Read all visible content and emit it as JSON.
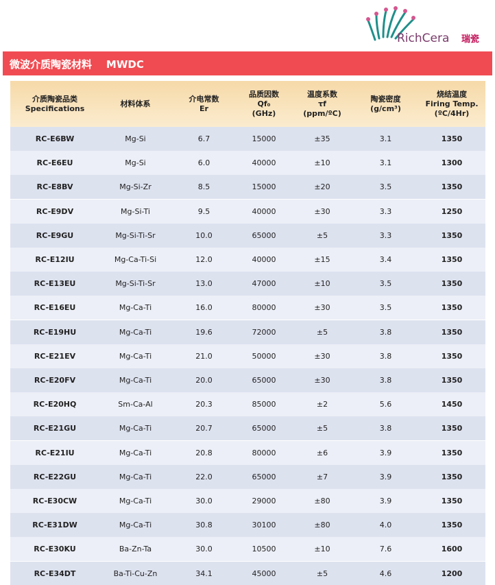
{
  "logo": {
    "name": "RichCera",
    "cn": "瑞瓷"
  },
  "banner": {
    "title": "微波介质陶瓷材料    MWDC"
  },
  "table": {
    "headers": [
      [
        "介质陶瓷品类",
        "Specifications"
      ],
      [
        "材料体系"
      ],
      [
        "介电常数",
        "Er"
      ],
      [
        "品质因数",
        "Qf₀",
        "(GHz)"
      ],
      [
        "温度系数",
        "τf",
        "(ppm/ºC)"
      ],
      [
        "陶瓷密度",
        "(g/cm³)"
      ],
      [
        "烧结温度",
        "Firing Temp.",
        "(ºC/4Hr)"
      ]
    ],
    "rows": [
      [
        "RC-E6BW",
        "Mg-Si",
        "6.7",
        "15000",
        "±35",
        "3.1",
        "1350"
      ],
      [
        "RC-E6EU",
        "Mg-Si",
        "6.0",
        "40000",
        "±10",
        "3.1",
        "1300"
      ],
      [
        "RC-E8BV",
        "Mg-Si-Zr",
        "8.5",
        "15000",
        "±20",
        "3.5",
        "1350"
      ],
      [
        "RC-E9DV",
        "Mg-Si-Ti",
        "9.5",
        "40000",
        "±30",
        "3.3",
        "1250"
      ],
      [
        "RC-E9GU",
        "Mg-Si-Ti-Sr",
        "10.0",
        "65000",
        "±5",
        "3.3",
        "1350"
      ],
      [
        "RC-E12IU",
        "Mg-Ca-Ti-Si",
        "12.0",
        "40000",
        "±15",
        "3.4",
        "1350"
      ],
      [
        "RC-E13EU",
        "Mg-Si-Ti-Sr",
        "13.0",
        "47000",
        "±10",
        "3.5",
        "1350"
      ],
      [
        "RC-E16EU",
        "Mg-Ca-Ti",
        "16.0",
        "80000",
        "±30",
        "3.5",
        "1350"
      ],
      [
        "RC-E19HU",
        "Mg-Ca-Ti",
        "19.6",
        "72000",
        "±5",
        "3.8",
        "1350"
      ],
      [
        "RC-E21EV",
        "Mg-Ca-Ti",
        "21.0",
        "50000",
        "±30",
        "3.8",
        "1350"
      ],
      [
        "RC-E20FV",
        "Mg-Ca-Ti",
        "20.0",
        "65000",
        "±30",
        "3.8",
        "1350"
      ],
      [
        "RC-E20HQ",
        "Sm-Ca-Al",
        "20.3",
        "85000",
        "±2",
        "5.6",
        "1450"
      ],
      [
        "RC-E21GU",
        "Mg-Ca-Ti",
        "20.7",
        "65000",
        "±5",
        "3.8",
        "1350"
      ],
      [
        "RC-E21IU",
        "Mg-Ca-Ti",
        "20.8",
        "80000",
        "±6",
        "3.9",
        "1350"
      ],
      [
        "RC-E22GU",
        "Mg-Ca-Ti",
        "22.0",
        "65000",
        "±7",
        "3.9",
        "1350"
      ],
      [
        "RC-E30CW",
        "Mg-Ca-Ti",
        "30.0",
        "29000",
        "±80",
        "3.9",
        "1350"
      ],
      [
        "RC-E31DW",
        "Mg-Ca-Ti",
        "30.8",
        "30100",
        "±80",
        "4.0",
        "1350"
      ],
      [
        "RC-E30KU",
        "Ba-Zn-Ta",
        "30.0",
        "10500",
        "±10",
        "7.6",
        "1600"
      ],
      [
        "RC-E34DT",
        "Ba-Ti-Cu-Zn",
        "34.1",
        "45000",
        "±5",
        "4.6",
        "1200"
      ]
    ]
  }
}
